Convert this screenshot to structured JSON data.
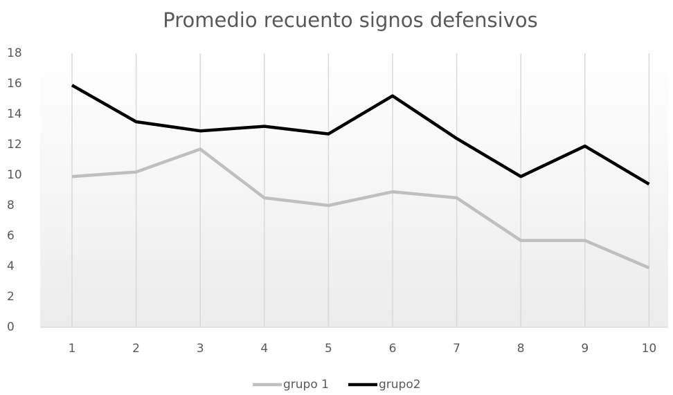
{
  "chart_data": {
    "type": "line",
    "title": "Promedio recuento signos defensivos",
    "categories": [
      "1",
      "2",
      "3",
      "4",
      "5",
      "6",
      "7",
      "8",
      "9",
      "10"
    ],
    "series": [
      {
        "name": "grupo 1",
        "color": "#bfbfbf",
        "values": [
          9.9,
          10.2,
          11.7,
          8.5,
          8.0,
          8.9,
          8.5,
          5.7,
          5.7,
          3.9
        ]
      },
      {
        "name": "grupo2",
        "color": "#000000",
        "values": [
          15.9,
          13.5,
          12.9,
          13.2,
          12.7,
          15.2,
          12.4,
          9.9,
          11.9,
          9.4
        ]
      }
    ],
    "ylim": [
      0,
      18
    ],
    "yticks": [
      0,
      2,
      4,
      6,
      8,
      10,
      12,
      14,
      16,
      18
    ],
    "grid": "x",
    "legend": "bottom"
  }
}
